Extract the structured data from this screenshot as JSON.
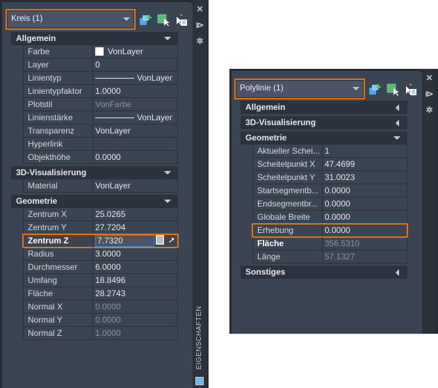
{
  "colors": {
    "accent": "#e8740c",
    "panel": "#3b4453",
    "header": "#2d333e"
  },
  "left": {
    "selector": "Kreis (1)",
    "side_tab": "EIGENSCHAFTEN",
    "sections": [
      {
        "title": "Allgemein",
        "expanded": true,
        "rows": [
          {
            "k": "Farbe",
            "v": "VonLayer",
            "swatch": true
          },
          {
            "k": "Layer",
            "v": "0"
          },
          {
            "k": "Linientyp",
            "v": "VonLayer",
            "line": true
          },
          {
            "k": "Linientypfaktor",
            "v": "1.0000"
          },
          {
            "k": "Plotstil",
            "v": "VonFarbe",
            "dim": true
          },
          {
            "k": "Linienstärke",
            "v": "VonLayer",
            "line": true
          },
          {
            "k": "Transparenz",
            "v": "VonLayer"
          },
          {
            "k": "Hyperlink",
            "v": ""
          },
          {
            "k": "Objekthöhe",
            "v": "0.0000"
          }
        ]
      },
      {
        "title": "3D-Visualisierung",
        "expanded": true,
        "rows": [
          {
            "k": "Material",
            "v": "VonLayer"
          }
        ]
      },
      {
        "title": "Geometrie",
        "expanded": true,
        "rows": [
          {
            "k": "Zentrum X",
            "v": "25.0265"
          },
          {
            "k": "Zentrum Y",
            "v": "27.7204"
          },
          {
            "k": "Zentrum Z",
            "v": "7.7320",
            "edit": true,
            "hl": true,
            "bold": true
          },
          {
            "k": "Radius",
            "v": "3.0000"
          },
          {
            "k": "Durchmesser",
            "v": "6.0000"
          },
          {
            "k": "Umfang",
            "v": "18.8496"
          },
          {
            "k": "Fläche",
            "v": "28.2743"
          },
          {
            "k": "Normal X",
            "v": "0.0000",
            "dim": true
          },
          {
            "k": "Normal Y",
            "v": "0.0000",
            "dim": true
          },
          {
            "k": "Normal Z",
            "v": "1.0000",
            "dim": true
          }
        ]
      }
    ]
  },
  "right": {
    "selector": "Polylinie (1)",
    "sections": [
      {
        "title": "Allgemein",
        "expanded": false,
        "rows": []
      },
      {
        "title": "3D-Visualisierung",
        "expanded": false,
        "rows": []
      },
      {
        "title": "Geometrie",
        "expanded": true,
        "rows": [
          {
            "k": "Aktueller Schei...",
            "v": "1"
          },
          {
            "k": "Scheitelpunkt X",
            "v": "47.4699"
          },
          {
            "k": "Scheitelpunkt Y",
            "v": "31.0023"
          },
          {
            "k": "Startsegmentb...",
            "v": "0.0000"
          },
          {
            "k": "Endsegmentbr...",
            "v": "0.0000"
          },
          {
            "k": "Globale Breite",
            "v": "0.0000"
          },
          {
            "k": "Erhebung",
            "v": "0.0000",
            "hl": true
          },
          {
            "k": "Fläche",
            "v": "356.5310",
            "dim": true,
            "bold": true
          },
          {
            "k": "Länge",
            "v": "57.1327",
            "dim": true
          }
        ]
      },
      {
        "title": "Sonstiges",
        "expanded": false,
        "rows": []
      }
    ]
  }
}
